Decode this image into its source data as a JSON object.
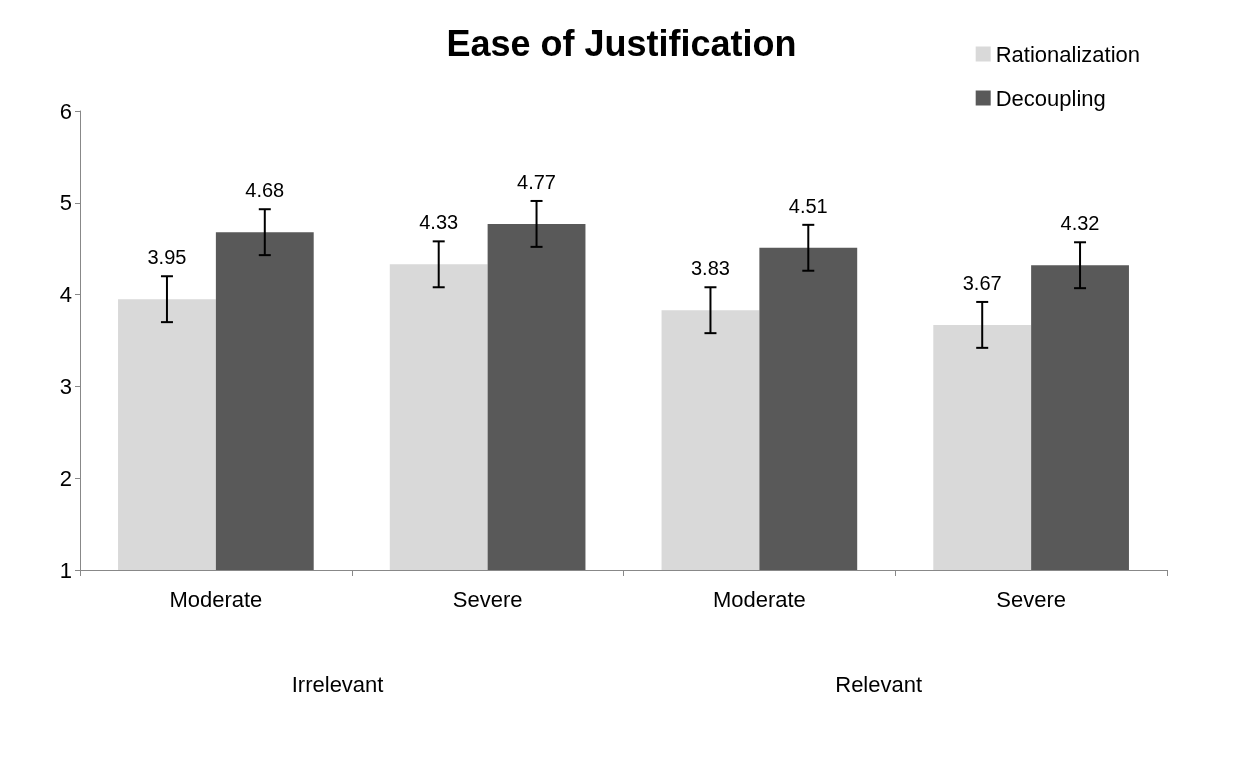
{
  "chart_data": {
    "type": "bar",
    "title": "Ease of Justification",
    "categories": [
      "Moderate",
      "Severe",
      "Moderate",
      "Severe"
    ],
    "series": [
      {
        "name": "Rationalization",
        "color": "#d9d9d9",
        "values": [
          3.95,
          4.33,
          3.83,
          3.67
        ],
        "errors": [
          0.25,
          0.25,
          0.25,
          0.25
        ]
      },
      {
        "name": "Decoupling",
        "color": "#595959",
        "values": [
          4.68,
          4.77,
          4.51,
          4.32
        ],
        "errors": [
          0.25,
          0.25,
          0.25,
          0.25
        ]
      }
    ],
    "annotations": [
      "Irrelevant",
      "Relevant"
    ],
    "ylim": [
      1,
      6
    ],
    "yticks": [
      1,
      2,
      3,
      4,
      5,
      6
    ],
    "grid": false,
    "legend": "top right",
    "data_labels": true
  }
}
